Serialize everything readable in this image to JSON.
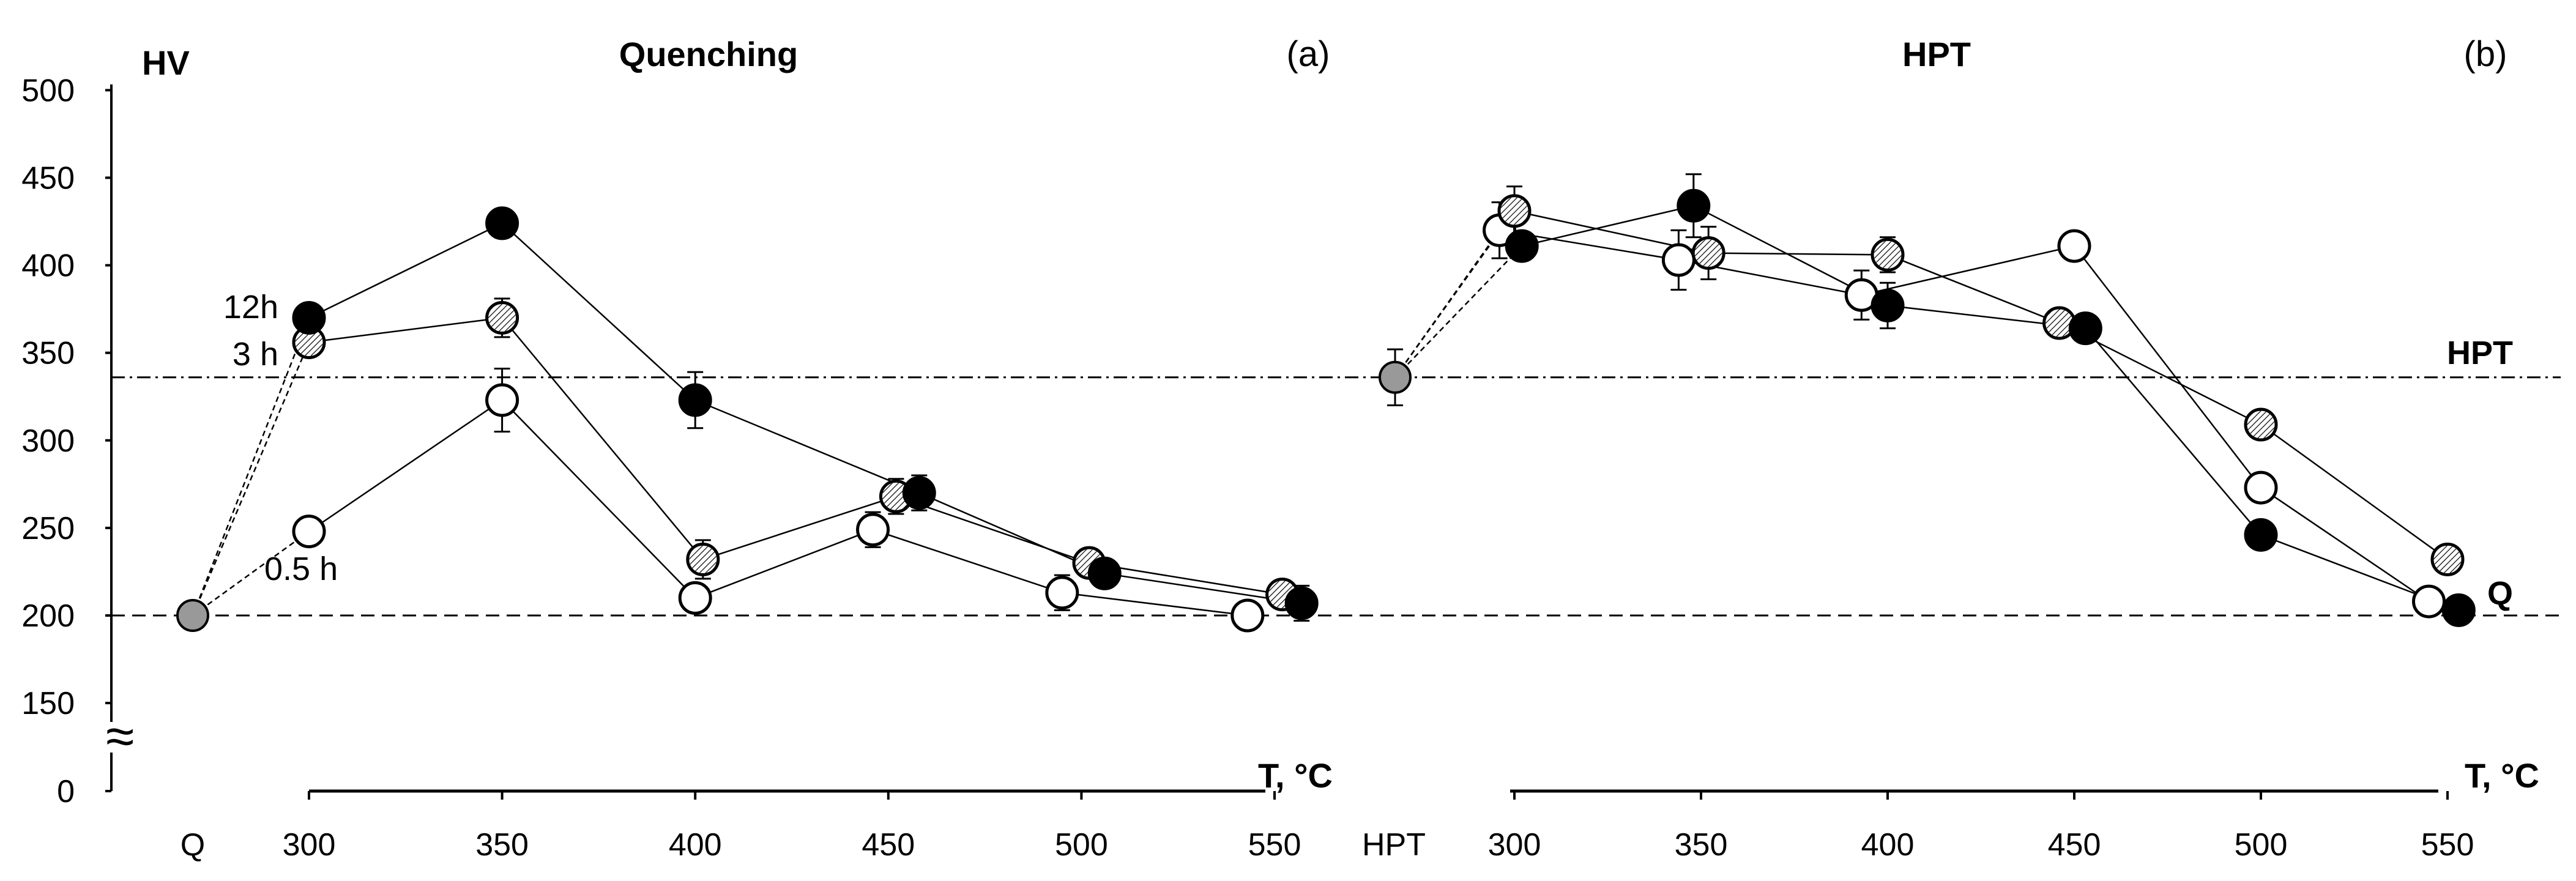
{
  "chart_data": [
    {
      "id": "a",
      "type": "scatter",
      "title": "Quenching",
      "panel_label": "(a)",
      "ylabel": "HV",
      "xlabel": "T, °C",
      "start_label": "Q",
      "ylim": [
        0,
        500
      ],
      "yticks": [
        0,
        150,
        200,
        250,
        300,
        350,
        400,
        450,
        500
      ],
      "y_axis_break": "≈",
      "xticks": [
        300,
        350,
        400,
        450,
        500,
        550
      ],
      "start_point": {
        "x": "Q",
        "y": 200
      },
      "series": [
        {
          "name": "12h",
          "label": "12h",
          "marker": "filled",
          "x": [
            300,
            350,
            400,
            458,
            506,
            557
          ],
          "y": [
            370,
            424,
            323,
            270,
            224,
            207
          ],
          "err": [
            0,
            0,
            16,
            10,
            0,
            10
          ]
        },
        {
          "name": "3 h",
          "label": "3 h",
          "marker": "hollow-hatched",
          "x": [
            300,
            350,
            402,
            452,
            502,
            552
          ],
          "y": [
            356,
            370,
            232,
            268,
            230,
            212
          ],
          "err": [
            0,
            11,
            11,
            10,
            8,
            8
          ]
        },
        {
          "name": "0.5 h",
          "label": "0.5 h",
          "marker": "hollow",
          "x": [
            300,
            350,
            400,
            446,
            495,
            543
          ],
          "y": [
            248,
            323,
            210,
            249,
            213,
            200
          ],
          "err": [
            0,
            18,
            0,
            10,
            10,
            0
          ]
        }
      ],
      "reference_lines": [
        {
          "label": "HPT",
          "y": 336,
          "style": "dash-dot"
        },
        {
          "label": "Q",
          "y": 200,
          "style": "dashed"
        }
      ]
    },
    {
      "id": "b",
      "type": "scatter",
      "title": "HPT",
      "panel_label": "(b)",
      "xlabel": "T, °C",
      "start_label": "HPT",
      "ylim": [
        0,
        500
      ],
      "xticks": [
        300,
        350,
        400,
        450,
        500,
        550
      ],
      "start_point": {
        "x": "HPT",
        "y": 336
      },
      "series": [
        {
          "name": "12h",
          "marker": "filled",
          "x": [
            302,
            348,
            400,
            453,
            500,
            553
          ],
          "y": [
            411,
            434,
            377,
            364,
            246,
            203
          ],
          "err": [
            0,
            18,
            13,
            0,
            0,
            0
          ]
        },
        {
          "name": "3 h",
          "marker": "hollow-hatched",
          "x": [
            300,
            352,
            400,
            446,
            500,
            550
          ],
          "y": [
            431,
            407,
            406,
            367,
            309,
            232
          ],
          "err": [
            14,
            15,
            10,
            0,
            0,
            0
          ]
        },
        {
          "name": "0.5 h",
          "marker": "hollow",
          "x": [
            296,
            344,
            393,
            450,
            500,
            545
          ],
          "y": [
            420,
            403,
            383,
            411,
            273,
            208
          ],
          "err": [
            16,
            17,
            14,
            0,
            0,
            0
          ]
        }
      ]
    }
  ]
}
